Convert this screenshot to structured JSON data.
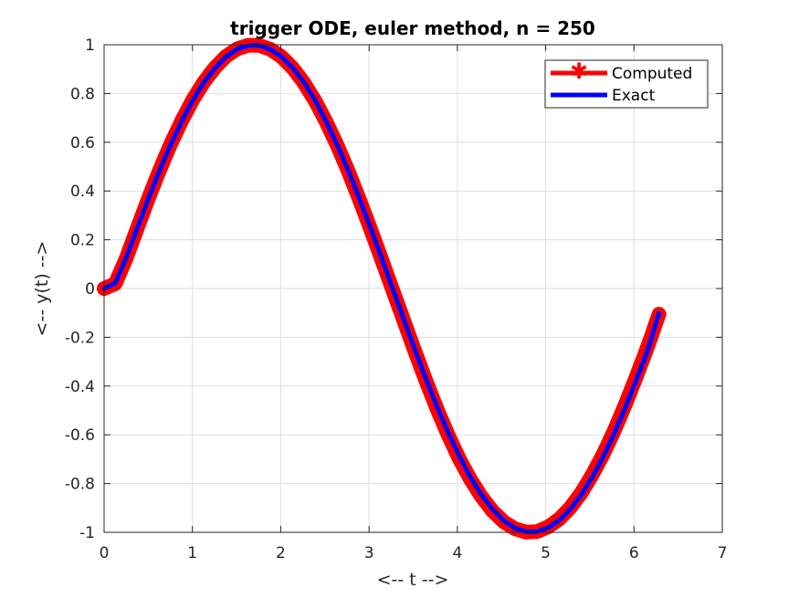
{
  "chart_data": {
    "type": "line",
    "title": "trigger ODE, euler method, n = 250",
    "xlabel": "<-- t -->",
    "ylabel": "<-- y(t) -->",
    "xlim": [
      0,
      7
    ],
    "ylim": [
      -1,
      1
    ],
    "xticks": [
      0,
      1,
      2,
      3,
      4,
      5,
      6,
      7
    ],
    "yticks": [
      -1,
      -0.8,
      -0.6,
      -0.4,
      -0.2,
      0,
      0.2,
      0.4,
      0.6,
      0.8,
      1
    ],
    "xtick_labels": [
      "0",
      "1",
      "2",
      "3",
      "4",
      "5",
      "6",
      "7"
    ],
    "ytick_labels": [
      "-1",
      "-0.8",
      "-0.6",
      "-0.4",
      "-0.2",
      "0",
      "0.2",
      "0.4",
      "0.6",
      "0.8",
      "1"
    ],
    "grid": true,
    "legend_position": "top-right",
    "series": [
      {
        "name": "Computed",
        "color": "#ff0000",
        "marker": "asterisk",
        "x": [
          0,
          0.126,
          0.251,
          0.377,
          0.503,
          0.628,
          0.754,
          0.88,
          1.005,
          1.131,
          1.257,
          1.382,
          1.508,
          1.634,
          1.759,
          1.885,
          2.011,
          2.136,
          2.262,
          2.388,
          2.513,
          2.639,
          2.765,
          2.89,
          3.016,
          3.142,
          3.267,
          3.393,
          3.519,
          3.644,
          3.77,
          3.896,
          4.021,
          4.147,
          4.273,
          4.398,
          4.524,
          4.65,
          4.775,
          4.901,
          5.027,
          5.152,
          5.278,
          5.404,
          5.529,
          5.655,
          5.781,
          5.906,
          6.032,
          6.158,
          6.283
        ],
        "y": [
          0,
          0.02,
          0.125,
          0.249,
          0.37,
          0.485,
          0.592,
          0.689,
          0.775,
          0.848,
          0.907,
          0.953,
          0.983,
          0.998,
          0.997,
          0.981,
          0.95,
          0.904,
          0.844,
          0.77,
          0.685,
          0.588,
          0.481,
          0.366,
          0.245,
          0.12,
          -0.006,
          -0.132,
          -0.257,
          -0.378,
          -0.494,
          -0.601,
          -0.698,
          -0.782,
          -0.854,
          -0.912,
          -0.956,
          -0.985,
          -0.999,
          -0.997,
          -0.978,
          -0.946,
          -0.899,
          -0.838,
          -0.763,
          -0.677,
          -0.579,
          -0.472,
          -0.356,
          -0.235,
          -0.105
        ]
      },
      {
        "name": "Exact",
        "color": "#0000ff",
        "x": [
          0,
          0.126,
          0.251,
          0.377,
          0.503,
          0.628,
          0.754,
          0.88,
          1.005,
          1.131,
          1.257,
          1.382,
          1.508,
          1.634,
          1.759,
          1.885,
          2.011,
          2.136,
          2.262,
          2.388,
          2.513,
          2.639,
          2.765,
          2.89,
          3.016,
          3.142,
          3.267,
          3.393,
          3.519,
          3.644,
          3.77,
          3.896,
          4.021,
          4.147,
          4.273,
          4.398,
          4.524,
          4.65,
          4.775,
          4.901,
          5.027,
          5.152,
          5.278,
          5.404,
          5.529,
          5.655,
          5.781,
          5.906,
          6.032,
          6.158,
          6.283
        ],
        "y": [
          0,
          0.022,
          0.128,
          0.25,
          0.37,
          0.484,
          0.59,
          0.687,
          0.773,
          0.846,
          0.905,
          0.951,
          0.982,
          0.997,
          0.997,
          0.981,
          0.951,
          0.905,
          0.846,
          0.773,
          0.687,
          0.59,
          0.484,
          0.37,
          0.25,
          0.126,
          0,
          -0.126,
          -0.25,
          -0.37,
          -0.484,
          -0.59,
          -0.687,
          -0.773,
          -0.846,
          -0.905,
          -0.951,
          -0.982,
          -0.997,
          -0.997,
          -0.981,
          -0.951,
          -0.905,
          -0.846,
          -0.773,
          -0.687,
          -0.59,
          -0.484,
          -0.37,
          -0.25,
          -0.1
        ]
      }
    ]
  }
}
